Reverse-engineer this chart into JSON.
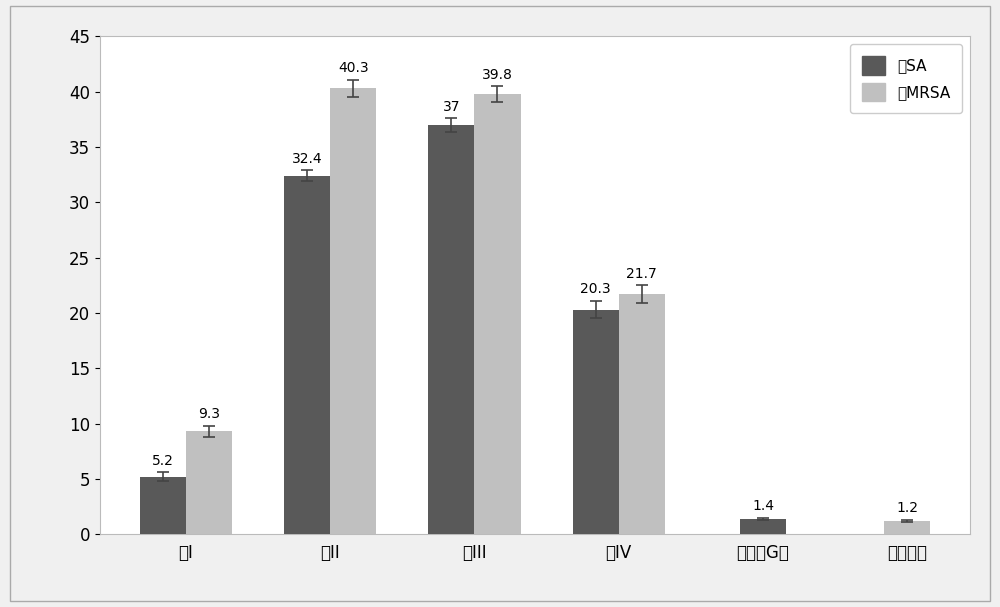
{
  "categories": [
    "式I",
    "式II",
    "式III",
    "式IV",
    "青霉素G钠",
    "万古霉素"
  ],
  "sa_values": [
    5.2,
    32.4,
    37.0,
    20.3,
    1.4,
    null
  ],
  "mrsa_values": [
    9.3,
    40.3,
    39.8,
    21.7,
    null,
    1.2
  ],
  "sa_errors": [
    0.4,
    0.5,
    0.6,
    0.8,
    0.1,
    null
  ],
  "mrsa_errors": [
    0.5,
    0.8,
    0.7,
    0.8,
    null,
    0.1
  ],
  "sa_color": "#595959",
  "mrsa_color": "#C0C0C0",
  "sa_label": "抗SA",
  "mrsa_label": "抗MRSA",
  "ylim": [
    0,
    45
  ],
  "yticks": [
    0,
    5,
    10,
    15,
    20,
    25,
    30,
    35,
    40,
    45
  ],
  "bar_width": 0.32,
  "figure_bg": "#f0f0f0",
  "plot_bg": "#ffffff",
  "border_color": "#AAAAAA",
  "tick_fontsize": 12,
  "legend_fontsize": 11,
  "value_fontsize": 10
}
